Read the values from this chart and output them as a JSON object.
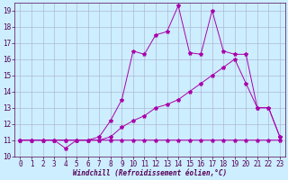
{
  "xlabel": "Windchill (Refroidissement éolien,°C)",
  "background_color": "#cceeff",
  "grid_color": "#aaaacc",
  "line_color": "#aa00aa",
  "xlim": [
    -0.5,
    23.5
  ],
  "ylim": [
    10,
    19.5
  ],
  "xticks": [
    0,
    1,
    2,
    3,
    4,
    5,
    6,
    7,
    8,
    9,
    10,
    11,
    12,
    13,
    14,
    15,
    16,
    17,
    18,
    19,
    20,
    21,
    22,
    23
  ],
  "yticks": [
    10,
    11,
    12,
    13,
    14,
    15,
    16,
    17,
    18,
    19
  ],
  "line1_x": [
    0,
    1,
    2,
    3,
    4,
    5,
    6,
    7,
    8,
    9,
    10,
    11,
    12,
    13,
    14,
    15,
    16,
    17,
    18,
    19,
    20,
    21,
    22,
    23
  ],
  "line1_y": [
    11,
    11,
    11,
    11,
    10.5,
    11,
    11,
    11,
    11,
    11,
    11,
    11,
    11,
    11,
    11,
    11,
    11,
    11,
    11,
    11,
    11,
    11,
    11,
    11
  ],
  "line2_x": [
    0,
    1,
    2,
    3,
    4,
    5,
    6,
    7,
    8,
    9,
    10,
    11,
    12,
    13,
    14,
    15,
    16,
    17,
    18,
    19,
    20,
    21,
    22,
    23
  ],
  "line2_y": [
    11,
    11,
    11,
    11,
    11,
    11,
    11,
    11,
    11.2,
    11.8,
    12.2,
    12.5,
    13.0,
    13.2,
    13.5,
    14.0,
    14.5,
    15.0,
    15.5,
    16.0,
    14.5,
    13.0,
    13.0,
    11.2
  ],
  "line3_x": [
    0,
    1,
    2,
    3,
    4,
    5,
    6,
    7,
    8,
    9,
    10,
    11,
    12,
    13,
    14,
    15,
    16,
    17,
    18,
    19,
    20,
    21,
    22,
    23
  ],
  "line3_y": [
    11,
    11,
    11,
    11,
    11,
    11,
    11,
    11.2,
    12.2,
    13.5,
    16.5,
    16.3,
    17.5,
    17.7,
    19.3,
    16.4,
    16.3,
    19.0,
    16.5,
    16.3,
    16.3,
    13.0,
    13.0,
    11.2
  ],
  "figsize": [
    3.2,
    2.0
  ],
  "dpi": 100,
  "tick_labelsize": 5.5,
  "xlabel_fontsize": 5.5
}
